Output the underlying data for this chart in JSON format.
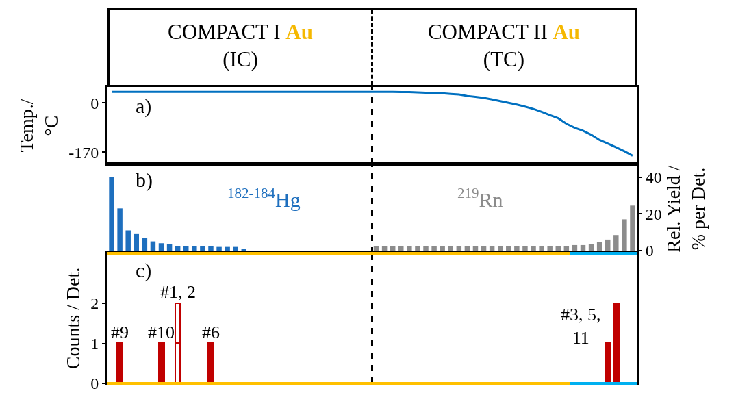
{
  "chart_data": [
    {
      "type": "other",
      "annotations": [
        "COMPACT I",
        "Au",
        "(IC)",
        "COMPACT II",
        "Au",
        "(TC)"
      ]
    },
    {
      "type": "line",
      "ylabel": "Temp./ °C",
      "ylim": [
        -212,
        55
      ],
      "yticks": [
        0,
        -170
      ],
      "annotations": [
        "a)"
      ],
      "categories": [
        null,
        null,
        null,
        null,
        null,
        null,
        null,
        null,
        null,
        null,
        null,
        null,
        null,
        null,
        null,
        null,
        null,
        null,
        null,
        null,
        null,
        null,
        null,
        null,
        null,
        null,
        null,
        null,
        null,
        null,
        null,
        null,
        null,
        null,
        null,
        null,
        null,
        null,
        null,
        null,
        null,
        null,
        null,
        null,
        null,
        null,
        null,
        null,
        null,
        null,
        null,
        null,
        null,
        null,
        null,
        null,
        null,
        null,
        null,
        null,
        null,
        null,
        null,
        null
      ],
      "series": [
        {
          "color": "#0070c0",
          "values": [
            38,
            38,
            38,
            38,
            38,
            38,
            38,
            38,
            38,
            38,
            38,
            38,
            38,
            38,
            38,
            38,
            38,
            38,
            38,
            38,
            38,
            38,
            38,
            38,
            38,
            38,
            38,
            38,
            38,
            38,
            38,
            38,
            38,
            38,
            38,
            37,
            37,
            36,
            35,
            35,
            33,
            31,
            29,
            24,
            21,
            17,
            12,
            6,
            0,
            -6,
            -13,
            -21,
            -31,
            -42,
            -53,
            -72,
            -86,
            -96,
            -110,
            -128,
            -140,
            -153,
            -167,
            -182
          ]
        }
      ]
    },
    {
      "type": "bar",
      "y2label": "Rel. Yield / % per Det.",
      "y2lim": [
        -1.5,
        47
      ],
      "y2ticks": [
        0,
        20,
        40
      ],
      "annotations": [
        "b)"
      ],
      "categories": [
        null,
        null,
        null,
        null,
        null,
        null,
        null,
        null,
        null,
        null,
        null,
        null,
        null,
        null,
        null,
        null,
        null,
        null,
        null,
        null,
        null,
        null,
        null,
        null,
        null,
        null,
        null,
        null,
        null,
        null,
        null,
        null,
        null,
        null,
        null,
        null,
        null,
        null,
        null,
        null,
        null,
        null,
        null,
        null,
        null,
        null,
        null,
        null,
        null,
        null,
        null,
        null,
        null,
        null,
        null,
        null,
        null,
        null,
        null,
        null,
        null,
        null,
        null,
        null
      ],
      "series": [
        {
          "name": "$^{182-184}$Hg",
          "color": "#1e6fbe",
          "axis": "y2",
          "values": [
            40,
            23,
            11,
            9,
            7,
            5,
            4,
            3.5,
            2.5,
            2.5,
            2.5,
            2.5,
            2.5,
            2,
            2,
            2,
            1,
            0,
            0,
            0,
            0,
            0,
            0,
            0,
            0,
            0,
            0,
            0,
            0,
            0,
            0,
            0,
            null,
            null,
            null,
            null,
            null,
            null,
            null,
            null,
            null,
            null,
            null,
            null,
            null,
            null,
            null,
            null,
            null,
            null,
            null,
            null,
            null,
            null,
            null,
            null,
            null,
            null,
            null,
            null,
            null,
            null,
            null,
            null
          ]
        },
        {
          "name": "$^{219}$Rn",
          "color": "#8c8c8c",
          "axis": "y2",
          "values": [
            null,
            null,
            null,
            null,
            null,
            null,
            null,
            null,
            null,
            null,
            null,
            null,
            null,
            null,
            null,
            null,
            null,
            null,
            null,
            null,
            null,
            null,
            null,
            null,
            null,
            null,
            null,
            null,
            null,
            null,
            null,
            null,
            2.5,
            2.5,
            2.5,
            2.5,
            2.5,
            2.5,
            2.5,
            2.5,
            2.5,
            2.5,
            2.5,
            2.5,
            2.5,
            2.5,
            2.5,
            2.5,
            2.5,
            2.5,
            2.5,
            2.5,
            2.5,
            2.5,
            2.5,
            2.5,
            3,
            3,
            3.5,
            4.5,
            6,
            8.5,
            17,
            24.5
          ]
        }
      ]
    },
    {
      "type": "bar",
      "stacked": true,
      "ylabel": "Counts / Det.",
      "ylim": [
        0,
        3.25
      ],
      "yticks": [
        0,
        1,
        2
      ],
      "annotations": [
        "c)",
        "#9",
        "#10",
        "#1, 2",
        "#6",
        "#3, 5, 11"
      ],
      "categories": [
        null,
        null,
        null,
        null,
        null,
        null,
        null,
        null,
        null,
        null,
        null,
        null,
        null,
        null,
        null,
        null,
        null,
        null,
        null,
        null,
        null,
        null,
        null,
        null,
        null,
        null,
        null,
        null,
        null,
        null,
        null,
        null,
        null,
        null,
        null,
        null,
        null,
        null,
        null,
        null,
        null,
        null,
        null,
        null,
        null,
        null,
        null,
        null,
        null,
        null,
        null,
        null,
        null,
        null,
        null,
        null,
        null,
        null,
        null,
        null,
        null,
        null,
        null,
        null
      ],
      "series": [
        {
          "color": "#c00000",
          "values": [
            null,
            1,
            null,
            null,
            null,
            null,
            1,
            null,
            null,
            null,
            null,
            null,
            1,
            null,
            null,
            null,
            null,
            null,
            null,
            null,
            null,
            null,
            null,
            null,
            null,
            null,
            null,
            null,
            null,
            null,
            null,
            null,
            null,
            null,
            null,
            null,
            null,
            null,
            null,
            null,
            null,
            null,
            null,
            null,
            null,
            null,
            null,
            null,
            null,
            null,
            null,
            null,
            null,
            null,
            null,
            null,
            null,
            null,
            null,
            null,
            1,
            1,
            null,
            null
          ]
        },
        {
          "color": "#ffffff",
          "values": [
            null,
            null,
            null,
            null,
            null,
            null,
            null,
            null,
            1,
            null,
            null,
            null,
            null,
            null,
            null,
            null,
            null,
            null,
            null,
            null,
            null,
            null,
            null,
            null,
            null,
            null,
            null,
            null,
            null,
            null,
            null,
            null,
            null,
            null,
            null,
            null,
            null,
            null,
            null,
            null,
            null,
            null,
            null,
            null,
            null,
            null,
            null,
            null,
            null,
            null,
            null,
            null,
            null,
            null,
            null,
            null,
            null,
            null,
            null,
            null,
            null,
            null,
            null,
            null
          ]
        },
        {
          "color": "#ffffff",
          "values": [
            null,
            null,
            null,
            null,
            null,
            null,
            null,
            null,
            1,
            null,
            null,
            null,
            null,
            null,
            null,
            null,
            null,
            null,
            null,
            null,
            null,
            null,
            null,
            null,
            null,
            null,
            null,
            null,
            null,
            null,
            null,
            null,
            null,
            null,
            null,
            null,
            null,
            null,
            null,
            null,
            null,
            null,
            null,
            null,
            null,
            null,
            null,
            null,
            null,
            null,
            null,
            null,
            null,
            null,
            null,
            null,
            null,
            null,
            null,
            null,
            null,
            null,
            null,
            null
          ]
        },
        {
          "color": "#c00000",
          "values": [
            null,
            null,
            null,
            null,
            null,
            null,
            null,
            null,
            null,
            null,
            null,
            null,
            null,
            null,
            null,
            null,
            null,
            null,
            null,
            null,
            null,
            null,
            null,
            null,
            null,
            null,
            null,
            null,
            null,
            null,
            null,
            null,
            null,
            null,
            null,
            null,
            null,
            null,
            null,
            null,
            null,
            null,
            null,
            null,
            null,
            null,
            null,
            null,
            null,
            null,
            null,
            null,
            null,
            null,
            null,
            null,
            null,
            null,
            null,
            null,
            null,
            1,
            null,
            null
          ]
        }
      ]
    }
  ]
}
